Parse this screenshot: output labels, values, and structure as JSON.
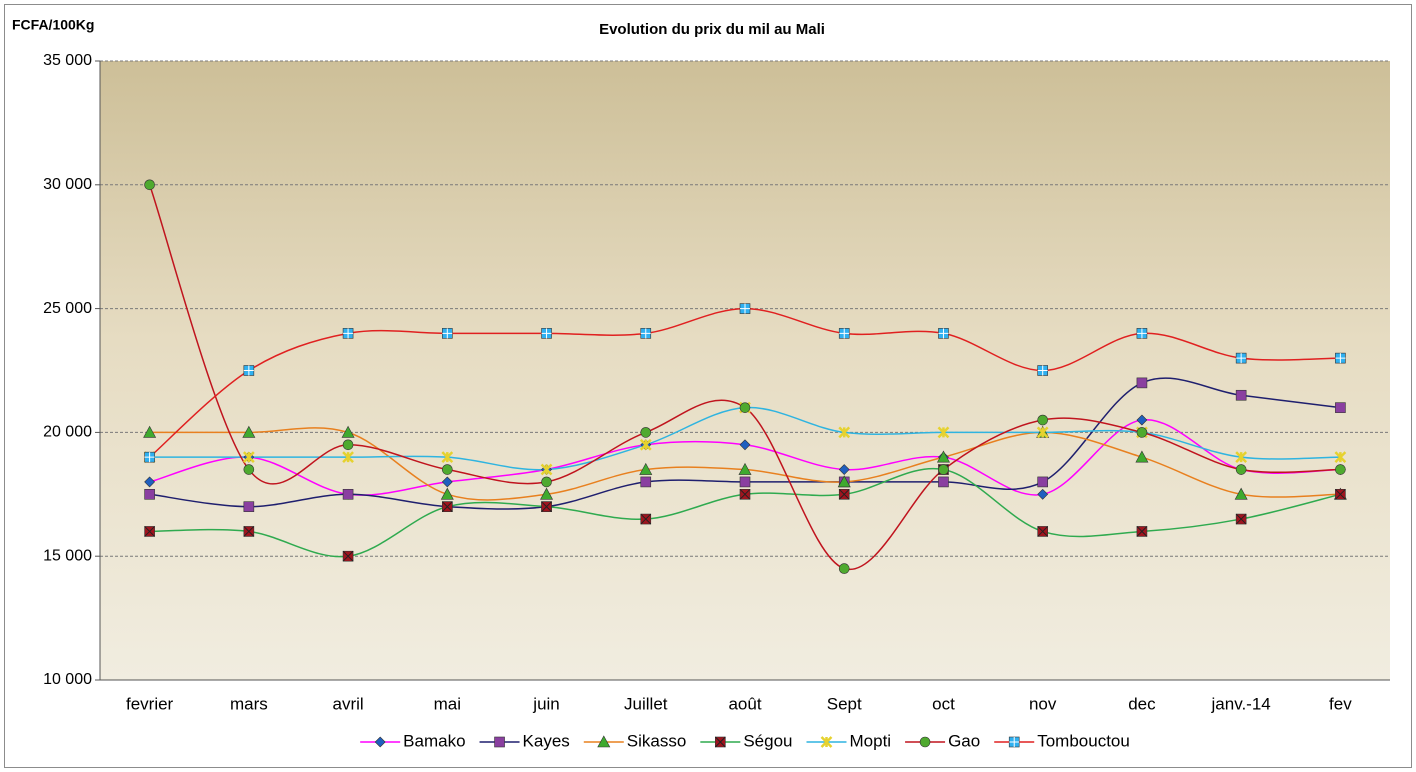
{
  "chart_data": {
    "type": "line",
    "title": "Evolution du prix du mil au Mali",
    "y_label": "FCFA/100Kg",
    "categories": [
      "fevrier",
      "mars",
      "avril",
      "mai",
      "juin",
      "Juillet",
      "août",
      "Sept",
      "oct",
      "nov",
      "dec",
      "janv.-14",
      "fev"
    ],
    "series": [
      {
        "name": "Bamako",
        "color": "#ff00ff",
        "marker_color": "#1f5fbf",
        "marker": "diamond",
        "values": [
          18000,
          19000,
          17500,
          18000,
          18500,
          19500,
          19500,
          18500,
          19000,
          17500,
          20500,
          18500,
          18500
        ]
      },
      {
        "name": "Kayes",
        "color": "#1f1f6e",
        "marker_color": "#8a3fa0",
        "marker": "square",
        "values": [
          17500,
          17000,
          17500,
          17000,
          17000,
          18000,
          18000,
          18000,
          18000,
          18000,
          22000,
          21500,
          21000
        ]
      },
      {
        "name": "Sikasso",
        "color": "#e8801f",
        "marker_color": "#3faa2f",
        "marker": "triangle",
        "values": [
          20000,
          20000,
          20000,
          17500,
          17500,
          18500,
          18500,
          18000,
          19000,
          20000,
          19000,
          17500,
          17500
        ]
      },
      {
        "name": "Ségou",
        "color": "#2faa4f",
        "marker_color": "#a0141e",
        "marker": "x-square",
        "values": [
          16000,
          16000,
          15000,
          17000,
          17000,
          16500,
          17500,
          17500,
          18500,
          16000,
          16000,
          16500,
          17500
        ]
      },
      {
        "name": "Mopti",
        "color": "#2fb4e0",
        "marker_color": "#e6d22f",
        "marker": "star",
        "values": [
          19000,
          19000,
          19000,
          19000,
          18500,
          19500,
          21000,
          20000,
          20000,
          20000,
          20000,
          19000,
          19000
        ]
      },
      {
        "name": "Gao",
        "color": "#c0141e",
        "marker_color": "#4faa2f",
        "marker": "circle",
        "values": [
          30000,
          18500,
          19500,
          18500,
          18000,
          20000,
          21000,
          14500,
          18500,
          20500,
          20000,
          18500,
          18500
        ]
      },
      {
        "name": "Tombouctou",
        "color": "#e02020",
        "marker_color": "#2fb0f0",
        "marker": "plus-square",
        "values": [
          19000,
          22500,
          24000,
          24000,
          24000,
          24000,
          25000,
          24000,
          24000,
          22500,
          24000,
          23000,
          23000
        ]
      }
    ],
    "ylim": [
      10000,
      35000
    ],
    "yticks": [
      {
        "value": 10000,
        "label": "10 000"
      },
      {
        "value": 15000,
        "label": "15 000"
      },
      {
        "value": 20000,
        "label": "20 000"
      },
      {
        "value": 25000,
        "label": "25 000"
      },
      {
        "value": 30000,
        "label": "30 000"
      },
      {
        "value": 35000,
        "label": "35 000"
      }
    ],
    "grid": true,
    "legend": "bottom",
    "smooth": true
  }
}
